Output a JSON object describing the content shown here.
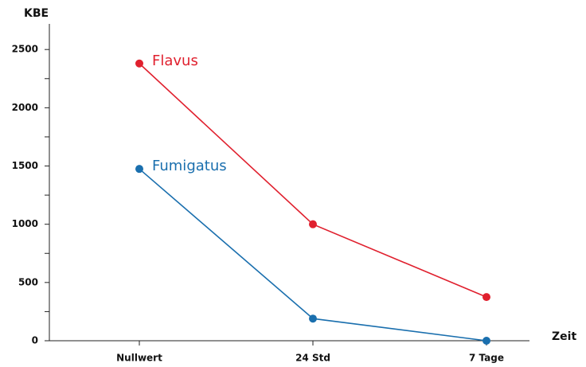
{
  "chart_data": {
    "type": "line",
    "x_label": "Zeit",
    "y_label": "KBE",
    "categories": [
      "Nullwert",
      "24 Std",
      "7 Tage"
    ],
    "series": [
      {
        "name": "Flavus",
        "color": "#e0202e",
        "values": [
          2380,
          1000,
          375
        ]
      },
      {
        "name": "Fumigatus",
        "color": "#1a6fae",
        "values": [
          1475,
          190,
          0
        ]
      }
    ],
    "ylim": [
      0,
      2720
    ],
    "yticks": [
      0,
      500,
      1000,
      1500,
      2000,
      2500
    ],
    "yminorticks": [
      250,
      750,
      1250,
      1750,
      2250
    ]
  }
}
